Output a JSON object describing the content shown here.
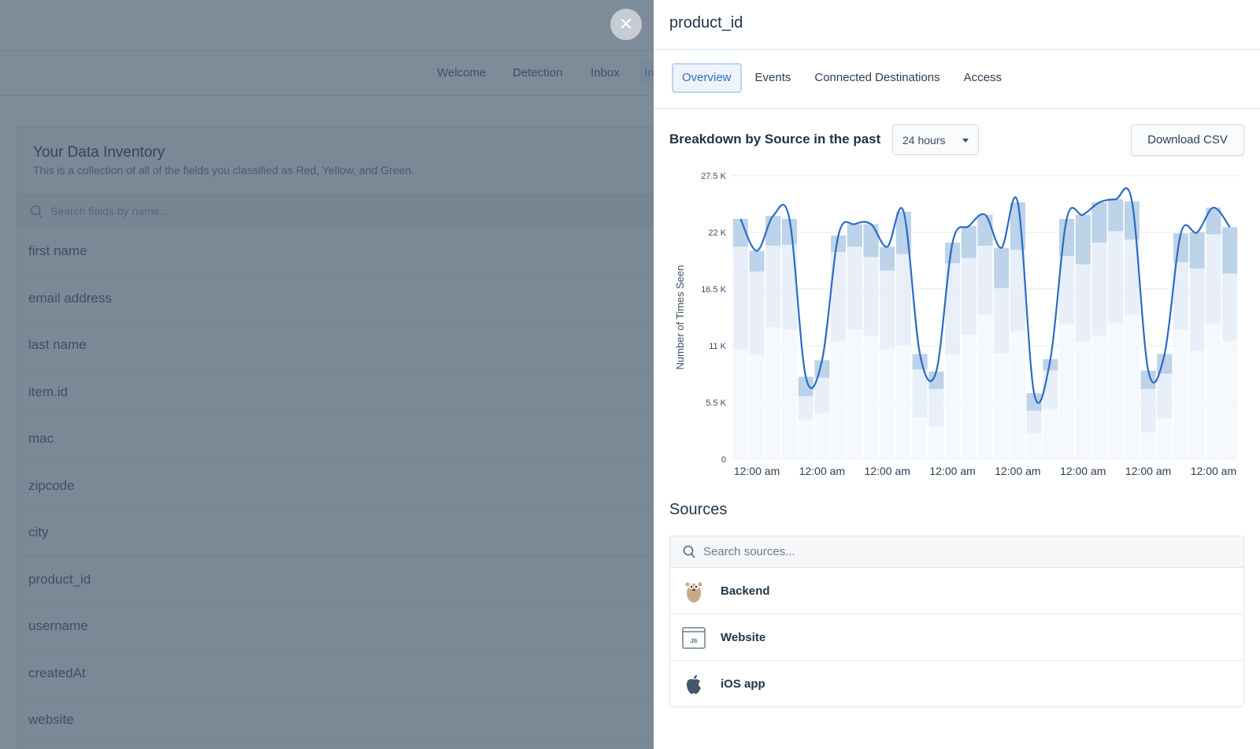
{
  "background": {
    "nav": [
      "Welcome",
      "Detection",
      "Inbox",
      "In"
    ],
    "card_title": "Your Data Inventory",
    "card_subtitle": "This is a collection of all of the fields you classified as Red, Yellow, and Green.",
    "search_placeholder": "Search fields by name...",
    "fields": [
      "first name",
      "email address",
      "last name",
      "item.id",
      "mac",
      "zipcode",
      "city",
      "product_id",
      "username",
      "createdAt",
      "website"
    ]
  },
  "close_icon": "close-icon",
  "drawer": {
    "title": "product_id",
    "tabs": [
      {
        "label": "Overview",
        "active": true
      },
      {
        "label": "Events"
      },
      {
        "label": "Connected Destinations"
      },
      {
        "label": "Access"
      }
    ],
    "breakdown_title": "Breakdown by Source in the past",
    "range_value": "24 hours",
    "download_label": "Download CSV",
    "sources_title": "Sources",
    "sources_placeholder": "Search sources...",
    "sources": [
      {
        "name": "Backend",
        "icon": "gopher-icon"
      },
      {
        "name": "Website",
        "icon": "javascript-icon"
      },
      {
        "name": "iOS app",
        "icon": "apple-icon"
      }
    ]
  },
  "chart_data": {
    "type": "bar",
    "stacked": true,
    "ylabel": "Number of Times Seen",
    "ylim": [
      0,
      27500
    ],
    "yticks": [
      "0",
      "5.5 K",
      "11 K",
      "16.5 K",
      "22 K",
      "27.5 K"
    ],
    "ytick_values": [
      0,
      5500,
      11000,
      16500,
      22000,
      27500
    ],
    "xtick_labels": [
      "12:00 am",
      "12:00 am",
      "12:00 am",
      "12:00 am",
      "12:00 am",
      "12:00 am",
      "12:00 am",
      "12:00 am"
    ],
    "xtick_bar_index": [
      1,
      5,
      9,
      13,
      17,
      21,
      25,
      29
    ],
    "grid": true,
    "series": [
      {
        "values": [
          10700,
          10100,
          12800,
          12600,
          3800,
          4500,
          11500,
          12600,
          12000,
          10700,
          11100,
          4100,
          3200,
          10100,
          12100,
          14000,
          10300,
          12400,
          2500,
          4900,
          13100,
          11400,
          12000,
          13200,
          14000,
          2600,
          4000,
          12600,
          10500,
          13100,
          11500
        ]
      },
      {
        "values": [
          9900,
          8100,
          7900,
          8200,
          2300,
          3400,
          8600,
          8000,
          7600,
          7600,
          8800,
          4600,
          3600,
          8900,
          7400,
          6700,
          6300,
          7900,
          2200,
          3700,
          6600,
          7500,
          9000,
          8900,
          7300,
          4200,
          4300,
          6500,
          8000,
          8700,
          6500
        ]
      },
      {
        "values": [
          2700,
          2000,
          2900,
          2500,
          1900,
          1700,
          1600,
          2200,
          3200,
          2300,
          4100,
          1500,
          1700,
          2000,
          3100,
          3000,
          3900,
          4600,
          1700,
          1100,
          3600,
          4800,
          3900,
          3100,
          3700,
          1800,
          1900,
          2800,
          3500,
          2600,
          4500
        ]
      }
    ],
    "total_line": true,
    "colors": {
      "bottom": "#f5f8fc",
      "middle": "#e8eff8",
      "top": "#bcd3ea",
      "line": "#2b6cc4"
    }
  }
}
